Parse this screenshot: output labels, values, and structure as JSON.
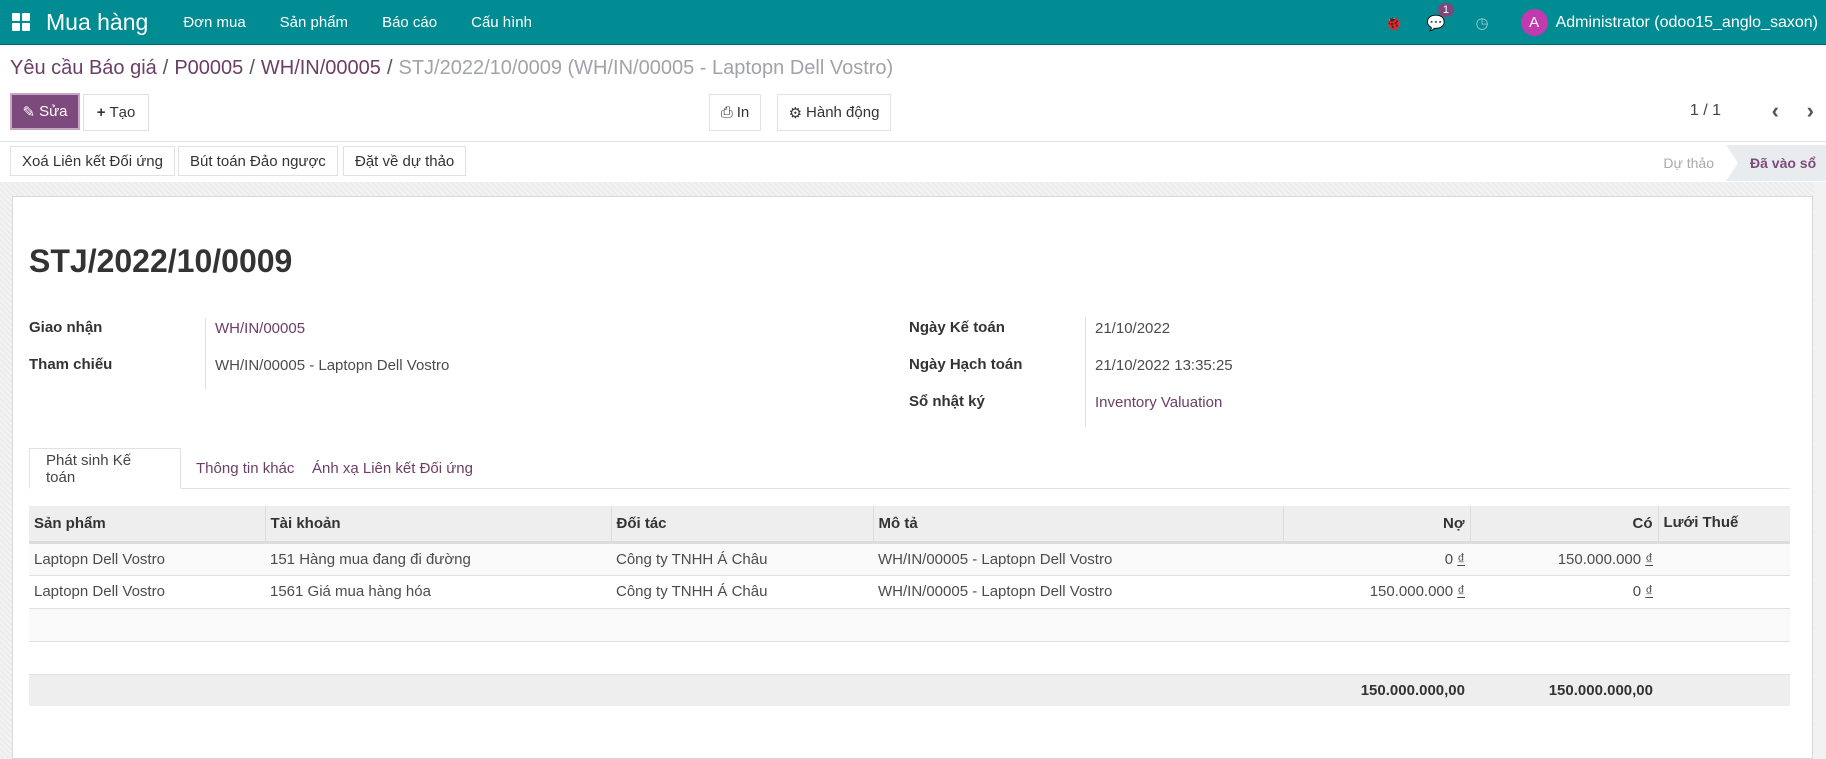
{
  "navbar": {
    "app_name": "Mua hàng",
    "menus": [
      "Đơn mua",
      "Sản phẩm",
      "Báo cáo",
      "Cấu hình"
    ],
    "message_count": "1",
    "avatar_letter": "A",
    "user": "Administrator (odoo15_anglo_saxon)",
    "color": "#018b92"
  },
  "breadcrumb": [
    "Yêu cầu Báo giá",
    "P00005",
    "WH/IN/00005",
    "STJ/2022/10/0009 (WH/IN/00005 - Laptopn Dell Vostro)"
  ],
  "toolbar": {
    "edit": "Sửa",
    "create": "Tạo",
    "print": "In",
    "action": "Hành động",
    "pager": "1 / 1"
  },
  "statusbar": {
    "buttons": [
      "Xoá Liên kết Đối ứng",
      "Bút toán Đảo ngược",
      "Đặt về dự thảo"
    ],
    "stages": [
      "Dự thảo",
      "Đã vào sổ"
    ],
    "current": "Đã vào sổ"
  },
  "form": {
    "title": "STJ/2022/10/0009",
    "left": [
      {
        "label": "Giao nhận",
        "value": "WH/IN/00005"
      },
      {
        "label": "Tham chiếu",
        "value": "WH/IN/00005 - Laptopn Dell Vostro"
      }
    ],
    "right": [
      {
        "label": "Ngày Kế toán",
        "value": "21/10/2022"
      },
      {
        "label": "Ngày Hạch toán",
        "value": "21/10/2022 13:35:25"
      },
      {
        "label": "Sổ nhật ký",
        "value": "Inventory Valuation"
      }
    ]
  },
  "tabs": [
    "Phát sinh Kế toán",
    "Thông tin khác",
    "Ánh xạ Liên kết Đối ứng"
  ],
  "table": {
    "headers": [
      "Sản phẩm",
      "Tài khoản",
      "Đối tác",
      "Mô tả",
      "Nợ",
      "Có",
      "Lưới Thuế"
    ],
    "rows": [
      [
        "Laptopn Dell Vostro",
        "151 Hàng mua đang đi đường",
        "Công ty TNHH Á Châu",
        "WH/IN/00005 - Laptopn Dell Vostro",
        "0",
        "150.000.000",
        ""
      ],
      [
        "Laptopn Dell Vostro",
        "1561 Giá mua hàng hóa",
        "Công ty TNHH Á Châu",
        "WH/IN/00005 - Laptopn Dell Vostro",
        "150.000.000",
        "0",
        ""
      ]
    ],
    "currency": "₫",
    "totals": {
      "debit": "150.000.000,00",
      "credit": "150.000.000,00"
    }
  }
}
